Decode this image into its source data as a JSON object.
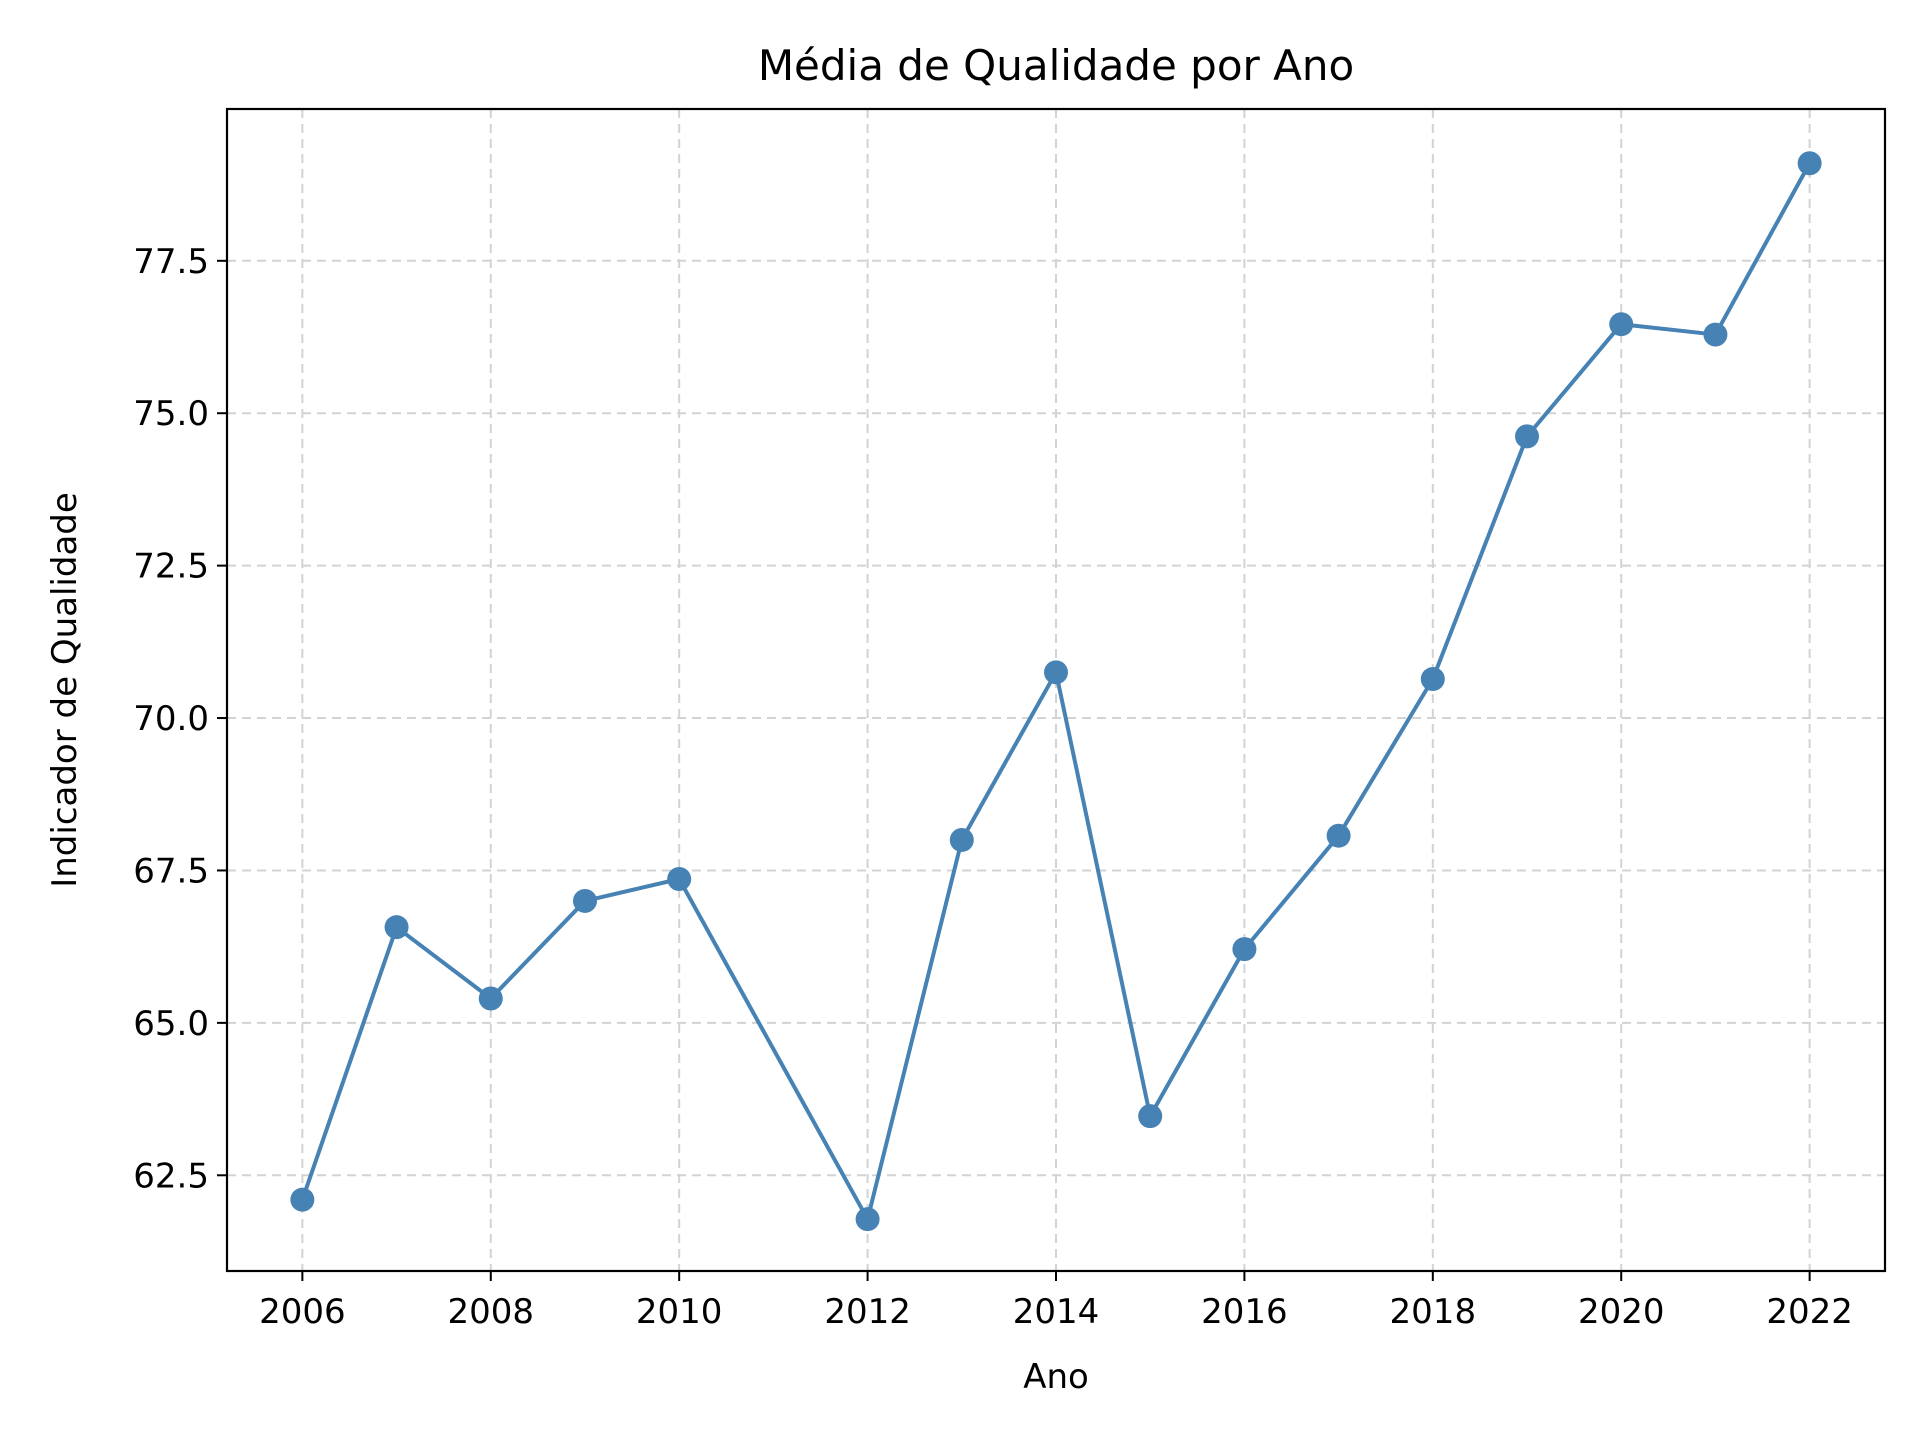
{
  "chart_data": {
    "type": "line",
    "title": "Média de Qualidade por Ano",
    "xlabel": "Ano",
    "ylabel": "Indicador de Qualidade",
    "x": [
      2006,
      2007,
      2008,
      2009,
      2010,
      2012,
      2013,
      2014,
      2015,
      2016,
      2017,
      2018,
      2019,
      2020,
      2021,
      2022
    ],
    "series": [
      {
        "values": [
          62.1,
          66.57,
          65.4,
          67.0,
          67.36,
          61.78,
          68.0,
          70.75,
          63.47,
          66.21,
          68.07,
          70.64,
          74.62,
          76.46,
          76.29,
          79.1
        ]
      }
    ],
    "xlim": [
      2005.2,
      2022.8
    ],
    "ylim": [
      60.93,
      79.99
    ],
    "xticks": [
      "2006",
      "2008",
      "2010",
      "2012",
      "2014",
      "2016",
      "2018",
      "2020",
      "2022"
    ],
    "yticks": [
      "62.5",
      "65.0",
      "67.5",
      "70.0",
      "72.5",
      "75.0",
      "77.5"
    ],
    "grid": true,
    "line_color": "#4682b4",
    "marker": "circle"
  }
}
